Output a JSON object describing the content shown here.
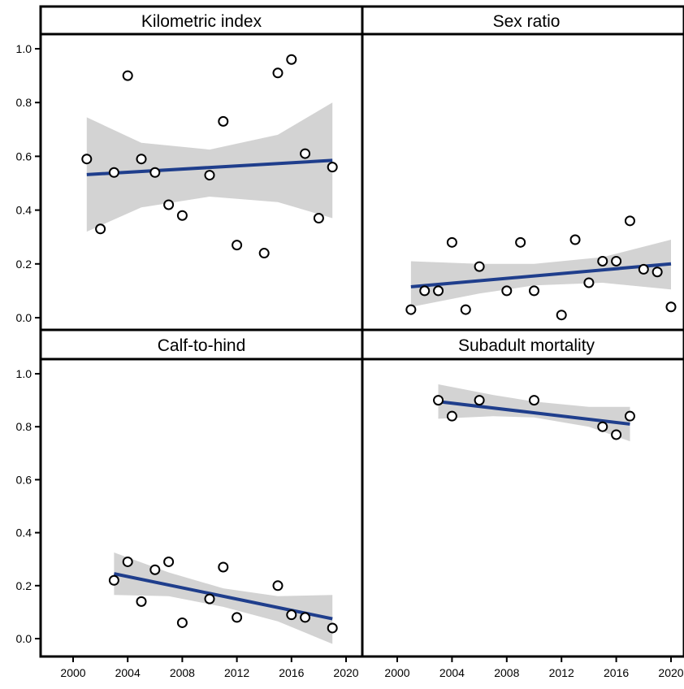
{
  "chart_data": [
    {
      "type": "scatter",
      "title": "Kilometric index",
      "xlim": [
        2000,
        2020
      ],
      "ylim": [
        0.0,
        1.0
      ],
      "points": [
        {
          "x": 2001,
          "y": 0.59
        },
        {
          "x": 2002,
          "y": 0.33
        },
        {
          "x": 2003,
          "y": 0.54
        },
        {
          "x": 2004,
          "y": 0.9
        },
        {
          "x": 2005,
          "y": 0.59
        },
        {
          "x": 2006,
          "y": 0.54
        },
        {
          "x": 2007,
          "y": 0.42
        },
        {
          "x": 2008,
          "y": 0.38
        },
        {
          "x": 2010,
          "y": 0.53
        },
        {
          "x": 2011,
          "y": 0.73
        },
        {
          "x": 2012,
          "y": 0.27
        },
        {
          "x": 2014,
          "y": 0.24
        },
        {
          "x": 2015,
          "y": 0.91
        },
        {
          "x": 2016,
          "y": 0.96
        },
        {
          "x": 2017,
          "y": 0.61
        },
        {
          "x": 2018,
          "y": 0.37
        },
        {
          "x": 2019,
          "y": 0.56
        }
      ],
      "fit": {
        "x": [
          2001,
          2019
        ],
        "y": [
          0.532,
          0.585
        ]
      },
      "ci": {
        "x": [
          2001,
          2005,
          2010,
          2015,
          2019
        ],
        "lower": [
          0.32,
          0.41,
          0.45,
          0.43,
          0.37
        ],
        "upper": [
          0.745,
          0.65,
          0.625,
          0.68,
          0.8
        ]
      }
    },
    {
      "type": "scatter",
      "title": "Sex ratio",
      "xlim": [
        2000,
        2020
      ],
      "ylim": [
        0.0,
        1.0
      ],
      "points": [
        {
          "x": 2001,
          "y": 0.03
        },
        {
          "x": 2002,
          "y": 0.1
        },
        {
          "x": 2003,
          "y": 0.1
        },
        {
          "x": 2004,
          "y": 0.28
        },
        {
          "x": 2005,
          "y": 0.03
        },
        {
          "x": 2006,
          "y": 0.19
        },
        {
          "x": 2008,
          "y": 0.1
        },
        {
          "x": 2009,
          "y": 0.28
        },
        {
          "x": 2010,
          "y": 0.1
        },
        {
          "x": 2012,
          "y": 0.01
        },
        {
          "x": 2013,
          "y": 0.29
        },
        {
          "x": 2014,
          "y": 0.13
        },
        {
          "x": 2015,
          "y": 0.21
        },
        {
          "x": 2016,
          "y": 0.21
        },
        {
          "x": 2017,
          "y": 0.36
        },
        {
          "x": 2018,
          "y": 0.18
        },
        {
          "x": 2019,
          "y": 0.17
        },
        {
          "x": 2020,
          "y": 0.04
        }
      ],
      "fit": {
        "x": [
          2001,
          2020
        ],
        "y": [
          0.115,
          0.2
        ]
      },
      "ci": {
        "x": [
          2001,
          2006,
          2010,
          2015,
          2020
        ],
        "lower": [
          0.04,
          0.09,
          0.12,
          0.13,
          0.105
        ],
        "upper": [
          0.21,
          0.2,
          0.2,
          0.225,
          0.29
        ]
      }
    },
    {
      "type": "scatter",
      "title": "Calf-to-hind",
      "xlim": [
        2000,
        2020
      ],
      "ylim": [
        0.0,
        1.0
      ],
      "points": [
        {
          "x": 2003,
          "y": 0.22
        },
        {
          "x": 2004,
          "y": 0.29
        },
        {
          "x": 2005,
          "y": 0.14
        },
        {
          "x": 2006,
          "y": 0.26
        },
        {
          "x": 2007,
          "y": 0.29
        },
        {
          "x": 2008,
          "y": 0.06
        },
        {
          "x": 2010,
          "y": 0.15
        },
        {
          "x": 2011,
          "y": 0.27
        },
        {
          "x": 2012,
          "y": 0.08
        },
        {
          "x": 2015,
          "y": 0.2
        },
        {
          "x": 2016,
          "y": 0.09
        },
        {
          "x": 2017,
          "y": 0.08
        },
        {
          "x": 2019,
          "y": 0.04
        }
      ],
      "fit": {
        "x": [
          2003,
          2019
        ],
        "y": [
          0.245,
          0.075
        ]
      },
      "ci": {
        "x": [
          2003,
          2007,
          2011,
          2015,
          2019
        ],
        "lower": [
          0.165,
          0.16,
          0.12,
          0.065,
          -0.02
        ],
        "upper": [
          0.325,
          0.25,
          0.19,
          0.16,
          0.165
        ]
      }
    },
    {
      "type": "scatter",
      "title": "Subadult mortality",
      "xlim": [
        2000,
        2020
      ],
      "ylim": [
        0.0,
        1.0
      ],
      "points": [
        {
          "x": 2003,
          "y": 0.9
        },
        {
          "x": 2004,
          "y": 0.84
        },
        {
          "x": 2006,
          "y": 0.9
        },
        {
          "x": 2010,
          "y": 0.9
        },
        {
          "x": 2015,
          "y": 0.8
        },
        {
          "x": 2016,
          "y": 0.77
        },
        {
          "x": 2017,
          "y": 0.84
        }
      ],
      "fit": {
        "x": [
          2003,
          2017
        ],
        "y": [
          0.895,
          0.81
        ]
      },
      "ci": {
        "x": [
          2003,
          2007,
          2010,
          2014,
          2017
        ],
        "lower": [
          0.83,
          0.84,
          0.835,
          0.8,
          0.745
        ],
        "upper": [
          0.96,
          0.92,
          0.895,
          0.875,
          0.875
        ]
      }
    }
  ],
  "axes": {
    "y_ticks": [
      "0.0",
      "0.2",
      "0.4",
      "0.6",
      "0.8",
      "1.0"
    ],
    "x_ticks_left": [
      "2000",
      "2004",
      "2008",
      "2012",
      "2016",
      "2020"
    ],
    "x_ticks_right": [
      "2000",
      "2004",
      "2008",
      "2012",
      "2016",
      "2020"
    ]
  },
  "colors": {
    "fit_line": "#1f3e8c",
    "ci_band": "#d3d3d3",
    "point_fill": "#ffffff",
    "point_stroke": "#000000",
    "panel_border": "#000000"
  }
}
